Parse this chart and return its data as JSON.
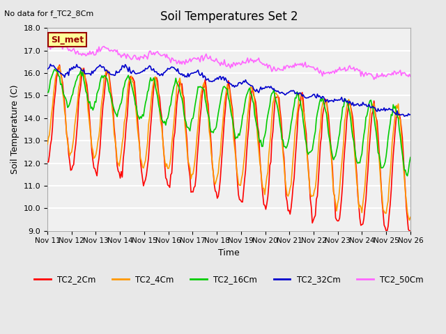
{
  "title": "Soil Temperatures Set 2",
  "subtitle": "No data for f_TC2_8Cm",
  "xlabel": "Time",
  "ylabel": "Soil Temperature (C)",
  "ylim": [
    9.0,
    18.0
  ],
  "yticks": [
    9.0,
    10.0,
    11.0,
    12.0,
    13.0,
    14.0,
    15.0,
    16.0,
    17.0,
    18.0
  ],
  "x_tick_labels": [
    "Nov 11",
    "Nov 12",
    "Nov 13",
    "Nov 14",
    "Nov 15",
    "Nov 16",
    "Nov 17",
    "Nov 18",
    "Nov 19",
    "Nov 20",
    "Nov 21",
    "Nov 22",
    "Nov 23",
    "Nov 24",
    "Nov 25",
    "Nov 26"
  ],
  "series_colors": {
    "TC2_2Cm": "#ff0000",
    "TC2_4Cm": "#ff9900",
    "TC2_16Cm": "#00cc00",
    "TC2_32Cm": "#0000cc",
    "TC2_50Cm": "#ff66ff"
  },
  "bg_color": "#e8e8e8",
  "plot_bg_color": "#f0f0f0",
  "grid_color": "#ffffff",
  "annotation_text": "SI_met",
  "annotation_box_color": "#ffff99",
  "annotation_border_color": "#990000"
}
